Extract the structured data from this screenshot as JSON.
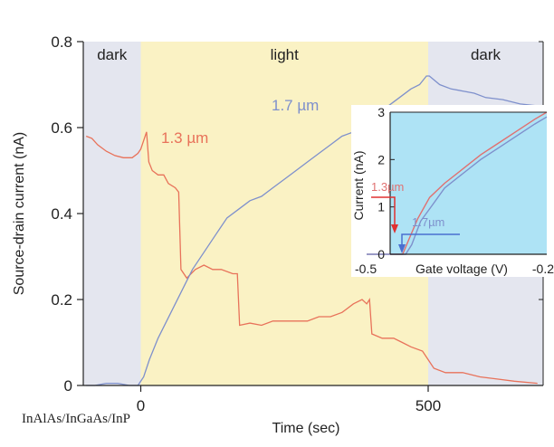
{
  "chart_data": [
    {
      "type": "line",
      "xlabel": "Time (sec)",
      "ylabel": "Source-drain current (nA)",
      "xlim": [
        -100,
        700
      ],
      "ylim": [
        0,
        0.8
      ],
      "x_ticks": [
        0,
        500
      ],
      "y_ticks": [
        0,
        0.2,
        0.4,
        0.6,
        0.8
      ],
      "y_tick_labels": [
        "0",
        "0.2",
        "0.4",
        "0.6",
        "0.8"
      ],
      "x_tick_labels": [
        "0",
        "500"
      ],
      "regions": [
        {
          "label": "dark",
          "x_start": -100,
          "x_end": 0,
          "color": "#e4e6ef"
        },
        {
          "label": "light",
          "x_start": 0,
          "x_end": 500,
          "color": "#faf2c4"
        },
        {
          "label": "dark",
          "x_start": 500,
          "x_end": 700,
          "color": "#e4e6ef"
        }
      ],
      "series": [
        {
          "name": "1.3 µm",
          "color": "#e8725a",
          "points": [
            [
              -95,
              0.58
            ],
            [
              -85,
              0.575
            ],
            [
              -75,
              0.56
            ],
            [
              -60,
              0.545
            ],
            [
              -45,
              0.535
            ],
            [
              -30,
              0.53
            ],
            [
              -15,
              0.53
            ],
            [
              -5,
              0.54
            ],
            [
              0,
              0.55
            ],
            [
              5,
              0.57
            ],
            [
              10,
              0.59
            ],
            [
              14,
              0.52
            ],
            [
              20,
              0.5
            ],
            [
              30,
              0.49
            ],
            [
              40,
              0.49
            ],
            [
              48,
              0.47
            ],
            [
              60,
              0.46
            ],
            [
              66,
              0.45
            ],
            [
              70,
              0.27
            ],
            [
              80,
              0.25
            ],
            [
              95,
              0.27
            ],
            [
              110,
              0.28
            ],
            [
              125,
              0.27
            ],
            [
              140,
              0.27
            ],
            [
              160,
              0.26
            ],
            [
              168,
              0.26
            ],
            [
              172,
              0.14
            ],
            [
              190,
              0.145
            ],
            [
              210,
              0.14
            ],
            [
              230,
              0.15
            ],
            [
              250,
              0.15
            ],
            [
              270,
              0.15
            ],
            [
              290,
              0.15
            ],
            [
              310,
              0.16
            ],
            [
              330,
              0.16
            ],
            [
              350,
              0.17
            ],
            [
              370,
              0.19
            ],
            [
              385,
              0.2
            ],
            [
              393,
              0.19
            ],
            [
              398,
              0.2
            ],
            [
              402,
              0.12
            ],
            [
              420,
              0.11
            ],
            [
              440,
              0.11
            ],
            [
              455,
              0.1
            ],
            [
              470,
              0.09
            ],
            [
              490,
              0.08
            ],
            [
              500,
              0.06
            ],
            [
              510,
              0.04
            ],
            [
              530,
              0.03
            ],
            [
              560,
              0.03
            ],
            [
              590,
              0.02
            ],
            [
              620,
              0.015
            ],
            [
              650,
              0.01
            ],
            [
              690,
              0.005
            ]
          ]
        },
        {
          "name": "1.7 µm",
          "color": "#7e90cc",
          "points": [
            [
              -95,
              0.0
            ],
            [
              -80,
              0.0
            ],
            [
              -60,
              0.005
            ],
            [
              -40,
              0.005
            ],
            [
              -20,
              0.0
            ],
            [
              -5,
              0.0
            ],
            [
              0,
              0.01
            ],
            [
              5,
              0.02
            ],
            [
              15,
              0.06
            ],
            [
              30,
              0.11
            ],
            [
              45,
              0.15
            ],
            [
              60,
              0.19
            ],
            [
              75,
              0.23
            ],
            [
              90,
              0.27
            ],
            [
              110,
              0.31
            ],
            [
              130,
              0.35
            ],
            [
              150,
              0.39
            ],
            [
              170,
              0.41
            ],
            [
              190,
              0.43
            ],
            [
              210,
              0.44
            ],
            [
              230,
              0.46
            ],
            [
              250,
              0.48
            ],
            [
              270,
              0.5
            ],
            [
              290,
              0.52
            ],
            [
              310,
              0.54
            ],
            [
              330,
              0.56
            ],
            [
              350,
              0.58
            ],
            [
              370,
              0.59
            ],
            [
              390,
              0.61
            ],
            [
              410,
              0.63
            ],
            [
              430,
              0.65
            ],
            [
              450,
              0.67
            ],
            [
              470,
              0.69
            ],
            [
              485,
              0.7
            ],
            [
              497,
              0.72
            ],
            [
              502,
              0.72
            ],
            [
              520,
              0.7
            ],
            [
              540,
              0.69
            ],
            [
              560,
              0.685
            ],
            [
              580,
              0.68
            ],
            [
              600,
              0.67
            ],
            [
              630,
              0.665
            ],
            [
              660,
              0.655
            ],
            [
              695,
              0.65
            ]
          ]
        }
      ],
      "annotations": [
        "1.3 µm",
        "1.7 µm"
      ]
    },
    {
      "type": "line",
      "inset": true,
      "xlabel": "Gate voltage (V)",
      "ylabel": "Current (nA)",
      "xlim": [
        -0.5,
        -0.2
      ],
      "ylim": [
        0,
        3
      ],
      "x_tick_labels": [
        "-0.5",
        "-0.2"
      ],
      "y_tick_labels": [
        "0",
        "1",
        "2",
        "3"
      ],
      "y_ticks": [
        0,
        1,
        2,
        3
      ],
      "background": "#aee3f5",
      "series": [
        {
          "name": "1.3µm",
          "color": "#e07070",
          "points": [
            [
              -0.5,
              0.0
            ],
            [
              -0.44,
              0.0
            ],
            [
              -0.43,
              0.3
            ],
            [
              -0.415,
              0.75
            ],
            [
              -0.395,
              1.2
            ],
            [
              -0.37,
              1.5
            ],
            [
              -0.34,
              1.8
            ],
            [
              -0.31,
              2.1
            ],
            [
              -0.28,
              2.35
            ],
            [
              -0.25,
              2.6
            ],
            [
              -0.22,
              2.85
            ],
            [
              -0.2,
              3.0
            ]
          ]
        },
        {
          "name": "1.7µm",
          "color": "#7e90cc",
          "points": [
            [
              -0.5,
              0.0
            ],
            [
              -0.435,
              0.0
            ],
            [
              -0.425,
              0.2
            ],
            [
              -0.41,
              0.7
            ],
            [
              -0.39,
              1.05
            ],
            [
              -0.37,
              1.4
            ],
            [
              -0.34,
              1.7
            ],
            [
              -0.31,
              2.0
            ],
            [
              -0.28,
              2.25
            ],
            [
              -0.25,
              2.5
            ],
            [
              -0.22,
              2.75
            ],
            [
              -0.2,
              2.9
            ]
          ]
        }
      ],
      "annotations": [
        "1.3µm",
        "1.7µm"
      ]
    }
  ],
  "footer": {
    "material": "InAlAs/InGaAs/InP"
  }
}
